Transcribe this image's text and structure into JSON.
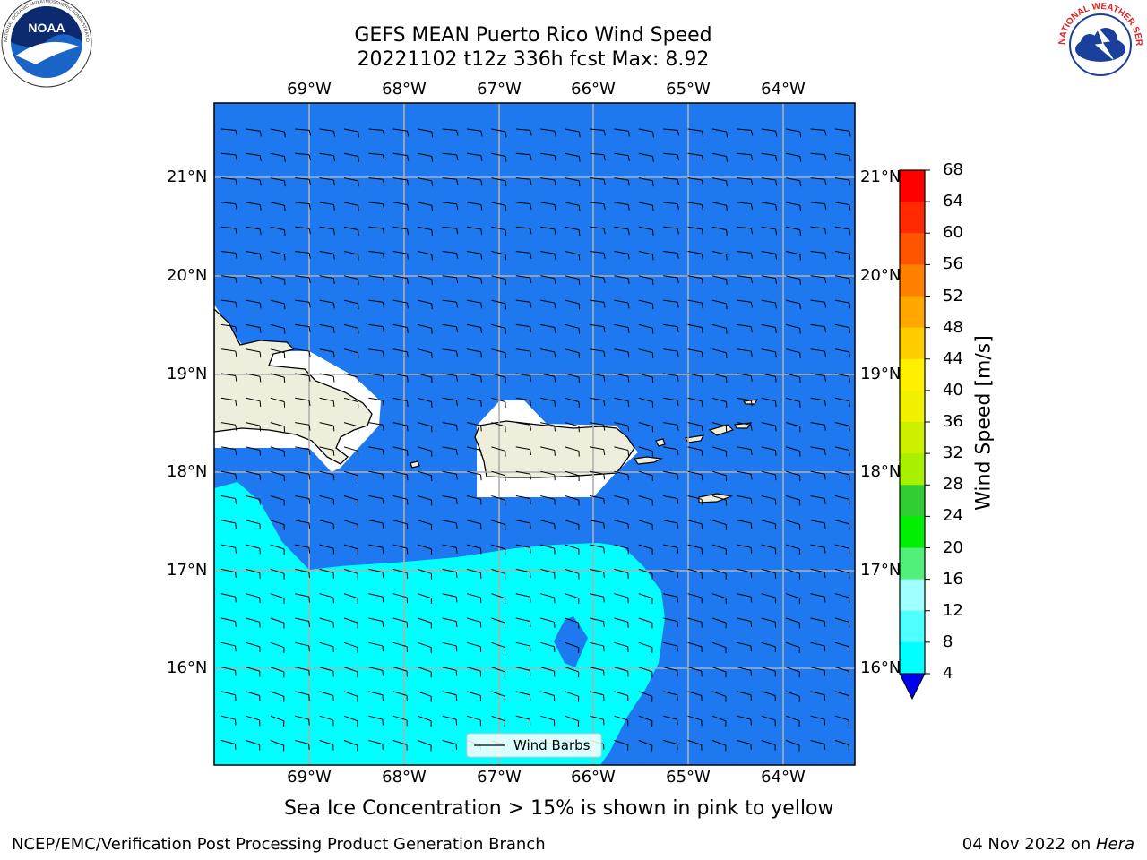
{
  "header": {
    "title_line1": "GEFS MEAN Puerto Rico Wind Speed",
    "title_line2": "20221102 t12z 336h fcst   Max: 8.92"
  },
  "logos": {
    "left_text": "NOAA",
    "left_ring_text": "NATIONAL OCEANIC AND ATMOSPHERIC ADMINISTRATION · U.S. DEPARTMENT OF COMMERCE",
    "right_ring_text": "NATIONAL WEATHER SERVICE"
  },
  "map": {
    "lon_labels": [
      "69°W",
      "68°W",
      "67°W",
      "66°W",
      "65°W",
      "64°W"
    ],
    "lat_labels": [
      "21°N",
      "20°N",
      "19°N",
      "18°N",
      "17°N",
      "16°N"
    ],
    "legend_label": "Wind Barbs",
    "colors": {
      "ocean": "#1e78f0",
      "cyan": "#00ffff",
      "land": "#eeeedd",
      "grid": "#b0b0b0"
    }
  },
  "colorbar": {
    "label": "Wind Speed [m/s]",
    "ticks": [
      "68",
      "64",
      "60",
      "56",
      "52",
      "48",
      "44",
      "40",
      "36",
      "32",
      "28",
      "24",
      "20",
      "16",
      "12",
      "8",
      "4"
    ],
    "colors": [
      "#ff0000",
      "#ff2a00",
      "#ff5500",
      "#ff8000",
      "#ffa600",
      "#ffcc00",
      "#fff000",
      "#f0f000",
      "#ccf000",
      "#a8f000",
      "#32cd32",
      "#00ee00",
      "#50f07a",
      "#a0ffff",
      "#50ffff",
      "#00ffff",
      "#1e78f0"
    ],
    "extend_color": "#0000ee"
  },
  "note": "Sea Ice Concentration > 15% is shown in pink to yellow",
  "footer": {
    "left": "NCEP/EMC/Verification Post Processing Product Generation Branch",
    "right_prefix": "04 Nov 2022 on ",
    "right_host": "Hera"
  },
  "chart_data": {
    "type": "filled-contour-map",
    "variable": "Wind Speed",
    "units": "m/s",
    "max": 8.92,
    "levels": [
      4,
      8,
      12,
      16,
      20,
      24,
      28,
      32,
      36,
      40,
      44,
      48,
      52,
      56,
      60,
      64,
      68
    ],
    "lon_range": [
      -70,
      -63.25
    ],
    "lat_range": [
      15,
      21.75
    ]
  }
}
